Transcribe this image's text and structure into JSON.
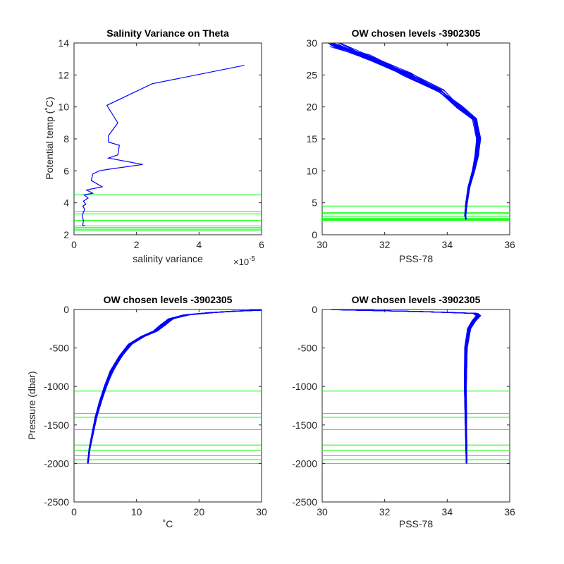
{
  "colors": {
    "data": "#0000ff",
    "levels": "#00ff00",
    "axes": "#262626",
    "background": "#ffffff"
  },
  "chart_data": [
    {
      "type": "line",
      "title": "Salinity Variance on Theta",
      "xlabel": "salinity variance",
      "ylabel": "Potential temp (˚C)",
      "x_exponent_label": "×10",
      "x_exponent_power": "-5",
      "xlim": [
        0,
        6
      ],
      "ylim": [
        2,
        14
      ],
      "xticks": [
        "0",
        "2",
        "4",
        "6"
      ],
      "yticks": [
        "2",
        "4",
        "6",
        "8",
        "10",
        "12",
        "14"
      ],
      "series": [
        {
          "x": [
            0.35,
            0.28,
            0.3,
            0.26,
            0.3,
            0.34,
            0.28,
            0.38,
            0.3,
            0.45,
            0.32,
            0.6,
            0.4,
            0.9,
            0.55,
            0.6,
            0.8,
            1.1,
            2.2,
            1.1,
            1.4,
            1.45,
            1.1,
            1.1,
            1.4,
            1.05,
            2.5,
            5.45
          ],
          "y": [
            2.55,
            2.6,
            2.9,
            3.2,
            3.4,
            3.6,
            3.8,
            3.9,
            4.1,
            4.3,
            4.5,
            4.6,
            4.8,
            5.0,
            5.4,
            5.8,
            6.0,
            6.1,
            6.4,
            6.8,
            7.0,
            7.6,
            7.8,
            8.2,
            9.0,
            10.1,
            11.45,
            12.6
          ]
        }
      ],
      "level_lines": [
        2.25,
        2.35,
        2.45,
        2.55,
        2.9,
        3.3,
        3.45,
        4.5
      ]
    },
    {
      "type": "line",
      "title": "OW chosen levels -3902305",
      "xlabel": "PSS-78",
      "ylabel": "",
      "xlim": [
        30,
        36
      ],
      "ylim": [
        0,
        30
      ],
      "xticks": [
        "30",
        "32",
        "34",
        "36"
      ],
      "yticks": [
        "0",
        "5",
        "10",
        "15",
        "20",
        "25",
        "30"
      ],
      "profile": {
        "x": [
          34.6,
          34.58,
          34.62,
          34.7,
          34.85,
          34.95,
          35.0,
          34.9,
          34.4,
          33.8,
          32.8,
          31.5,
          30.4
        ],
        "y": [
          2.4,
          3.0,
          5.0,
          7.5,
          10.0,
          12.5,
          15.0,
          18.0,
          20.0,
          22.5,
          25.0,
          27.8,
          29.8
        ]
      },
      "level_lines": [
        2.25,
        2.35,
        2.45,
        2.55,
        2.9,
        3.3,
        3.45,
        4.5
      ]
    },
    {
      "type": "line",
      "title": "OW chosen levels -3902305",
      "xlabel": "˚C",
      "ylabel": "Pressure (dbar)",
      "xlim": [
        0,
        30
      ],
      "ylim": [
        -2500,
        0
      ],
      "xticks": [
        "0",
        "10",
        "20",
        "30"
      ],
      "yticks": [
        "-2500",
        "-2000",
        "-1500",
        "-1000",
        "-500",
        "0"
      ],
      "profile": {
        "x": [
          2.2,
          2.5,
          3.0,
          3.5,
          4.2,
          5.0,
          6.0,
          7.5,
          9.0,
          11.0,
          13.0,
          14.2,
          15.5,
          18.0,
          22.0,
          26.0,
          29.5
        ],
        "y": [
          -2000,
          -1800,
          -1600,
          -1400,
          -1200,
          -1000,
          -800,
          -600,
          -450,
          -350,
          -280,
          -200,
          -120,
          -70,
          -40,
          -20,
          -10
        ]
      },
      "level_lines": [
        -1060,
        -1350,
        -1400,
        -1560,
        -1760,
        -1830,
        -1900,
        -1950,
        -2000
      ]
    },
    {
      "type": "line",
      "title": "OW chosen levels -3902305",
      "xlabel": "PSS-78",
      "ylabel": "",
      "xlim": [
        30,
        36
      ],
      "ylim": [
        -2500,
        0
      ],
      "xticks": [
        "30",
        "32",
        "34",
        "36"
      ],
      "yticks": [
        "-2500",
        "-2000",
        "-1500",
        "-1000",
        "-500",
        "0"
      ],
      "profile": {
        "x": [
          34.62,
          34.6,
          34.58,
          34.6,
          34.7,
          34.85,
          35.0,
          34.9,
          33.0,
          31.0,
          30.4
        ],
        "y": [
          -2000,
          -1500,
          -1000,
          -500,
          -250,
          -150,
          -80,
          -50,
          -25,
          -8,
          -2
        ]
      },
      "level_lines": [
        -1060,
        -1350,
        -1400,
        -1560,
        -1760,
        -1830,
        -1900,
        -1950,
        -2000
      ]
    }
  ]
}
